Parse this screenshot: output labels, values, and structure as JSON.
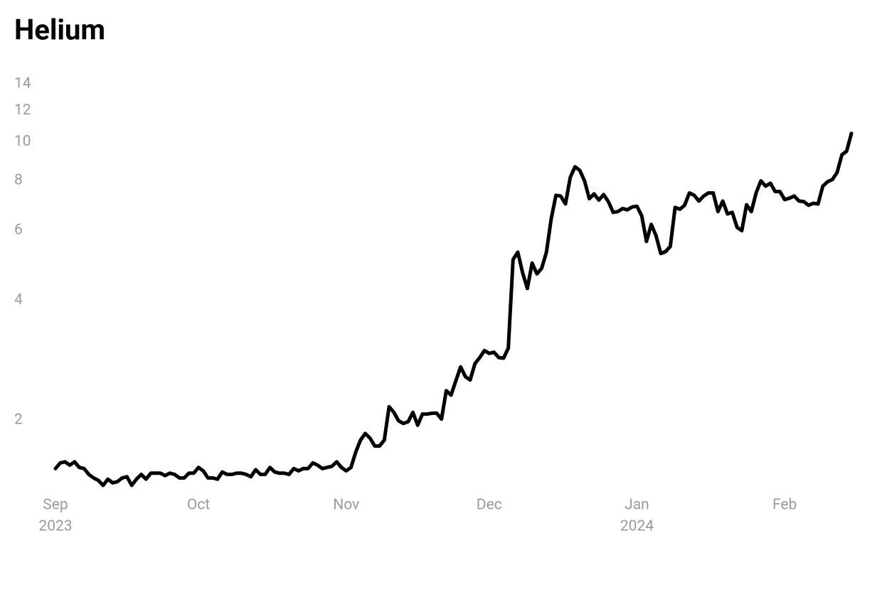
{
  "chart_data": {
    "type": "line",
    "title": "Helium",
    "log_scale": true,
    "ylim": [
      1.35,
      15
    ],
    "yticks": [
      2,
      4,
      6,
      8,
      10,
      12,
      14
    ],
    "xlim": [
      0,
      167
    ],
    "xticks": [
      {
        "value": 0,
        "label": [
          "Sep",
          "2023"
        ]
      },
      {
        "value": 30,
        "label": [
          "Oct"
        ]
      },
      {
        "value": 61,
        "label": [
          "Nov"
        ]
      },
      {
        "value": 91,
        "label": [
          "Dec"
        ]
      },
      {
        "value": 122,
        "label": [
          "Jan",
          "2024"
        ]
      },
      {
        "value": 153,
        "label": [
          "Feb"
        ]
      }
    ],
    "grid": false,
    "color": "#000000",
    "values": [
      1.51,
      1.56,
      1.57,
      1.54,
      1.57,
      1.52,
      1.51,
      1.46,
      1.43,
      1.41,
      1.37,
      1.42,
      1.39,
      1.4,
      1.43,
      1.44,
      1.37,
      1.42,
      1.46,
      1.42,
      1.47,
      1.47,
      1.47,
      1.45,
      1.47,
      1.46,
      1.43,
      1.43,
      1.47,
      1.47,
      1.52,
      1.49,
      1.43,
      1.43,
      1.42,
      1.48,
      1.46,
      1.46,
      1.47,
      1.47,
      1.46,
      1.44,
      1.5,
      1.46,
      1.46,
      1.52,
      1.48,
      1.47,
      1.47,
      1.46,
      1.51,
      1.49,
      1.51,
      1.51,
      1.56,
      1.54,
      1.51,
      1.52,
      1.53,
      1.57,
      1.52,
      1.49,
      1.52,
      1.66,
      1.78,
      1.85,
      1.8,
      1.72,
      1.72,
      1.78,
      2.16,
      2.09,
      1.99,
      1.96,
      1.98,
      2.09,
      1.94,
      2.07,
      2.07,
      2.08,
      2.08,
      2.01,
      2.37,
      2.31,
      2.51,
      2.72,
      2.57,
      2.52,
      2.77,
      2.87,
      2.99,
      2.94,
      2.96,
      2.87,
      2.86,
      3.03,
      5.06,
      5.28,
      4.69,
      4.28,
      4.96,
      4.66,
      4.81,
      5.28,
      6.4,
      7.34,
      7.31,
      6.98,
      8.14,
      8.66,
      8.48,
      7.98,
      7.2,
      7.4,
      7.14,
      7.37,
      7.08,
      6.65,
      6.68,
      6.8,
      6.75,
      6.86,
      6.89,
      6.52,
      5.62,
      6.2,
      5.81,
      5.24,
      5.3,
      5.46,
      6.84,
      6.77,
      6.93,
      7.44,
      7.34,
      7.1,
      7.31,
      7.44,
      7.44,
      6.68,
      7.1,
      6.59,
      6.65,
      6.1,
      5.98,
      6.95,
      6.68,
      7.44,
      7.98,
      7.74,
      7.87,
      7.5,
      7.5,
      7.16,
      7.22,
      7.31,
      7.1,
      7.08,
      6.93,
      7.01,
      6.98,
      7.74,
      7.94,
      8.04,
      8.38,
      9.28,
      9.48,
      10.5
    ]
  }
}
